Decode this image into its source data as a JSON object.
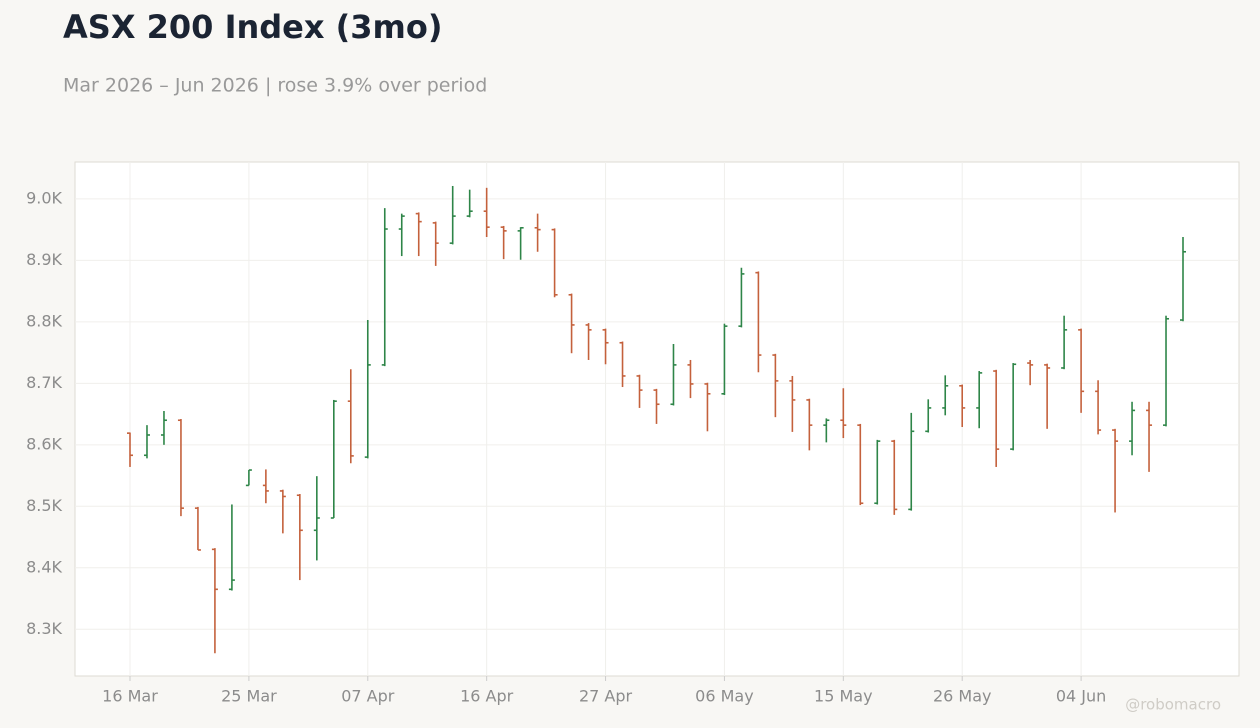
{
  "chart_data": {
    "type": "ohlc",
    "title": "ASX 200 Index (3mo)",
    "subtitle": "Mar 2026 – Jun 2026 | rose 3.9% over period",
    "watermark": "@robomacro",
    "categories": [
      "16 Mar",
      null,
      null,
      null,
      null,
      null,
      null,
      "25 Mar",
      null,
      null,
      null,
      null,
      null,
      null,
      "07 Apr",
      null,
      null,
      null,
      null,
      null,
      null,
      "16 Apr",
      null,
      null,
      null,
      null,
      null,
      null,
      "27 Apr",
      null,
      null,
      null,
      null,
      null,
      null,
      "06 May",
      null,
      null,
      null,
      null,
      null,
      null,
      "15 May",
      null,
      null,
      null,
      null,
      null,
      null,
      "26 May",
      null,
      null,
      null,
      null,
      null,
      null,
      "04 Jun",
      null,
      null,
      null,
      null,
      null,
      null
    ],
    "open": [
      8619,
      8583,
      8616,
      8640,
      8497,
      8430,
      8365,
      8534,
      8534,
      8525,
      8518,
      8461,
      8481,
      8671,
      8580,
      8730,
      8951,
      8976,
      8961,
      8928,
      8972,
      8980,
      8954,
      8948,
      8953,
      8950,
      8844,
      8795,
      8787,
      8766,
      8712,
      8689,
      8666,
      8730,
      8699,
      8683,
      8793,
      8880,
      8746,
      8704,
      8673,
      8632,
      8640,
      8632,
      8505,
      8606,
      8495,
      8622,
      8660,
      8696,
      8660,
      8720,
      8593,
      8733,
      8730,
      8725,
      8787,
      8687,
      8624,
      8606,
      8656,
      8632,
      8803
    ],
    "high": [
      8620,
      8632,
      8655,
      8642,
      8499,
      8432,
      8503,
      8559,
      8560,
      8527,
      8520,
      8549,
      8673,
      8723,
      8803,
      8985,
      8976,
      8978,
      8963,
      9021,
      9015,
      9018,
      8956,
      8954,
      8976,
      8952,
      8846,
      8798,
      8789,
      8768,
      8714,
      8691,
      8764,
      8738,
      8701,
      8797,
      8888,
      8882,
      8748,
      8712,
      8675,
      8643,
      8692,
      8634,
      8608,
      8608,
      8652,
      8674,
      8713,
      8698,
      8720,
      8722,
      8733,
      8738,
      8732,
      8810,
      8789,
      8705,
      8626,
      8670,
      8670,
      8810,
      8938
    ],
    "low": [
      8564,
      8578,
      8600,
      8484,
      8429,
      8261,
      8363,
      8534,
      8505,
      8456,
      8380,
      8412,
      8481,
      8570,
      8578,
      8728,
      8907,
      8907,
      8891,
      8926,
      8970,
      8938,
      8902,
      8901,
      8914,
      8840,
      8749,
      8738,
      8731,
      8694,
      8660,
      8634,
      8664,
      8676,
      8622,
      8681,
      8791,
      8718,
      8645,
      8621,
      8591,
      8604,
      8611,
      8502,
      8503,
      8486,
      8493,
      8620,
      8648,
      8629,
      8627,
      8564,
      8591,
      8697,
      8626,
      8723,
      8652,
      8617,
      8490,
      8583,
      8556,
      8630,
      8801
    ],
    "close": [
      8583,
      8616,
      8640,
      8497,
      8429,
      8365,
      8380,
      8559,
      8525,
      8516,
      8461,
      8481,
      8671,
      8582,
      8730,
      8951,
      8972,
      8963,
      8928,
      8972,
      8980,
      8954,
      8948,
      8953,
      8950,
      8844,
      8795,
      8787,
      8766,
      8712,
      8689,
      8666,
      8730,
      8699,
      8683,
      8793,
      8878,
      8746,
      8704,
      8673,
      8632,
      8640,
      8632,
      8505,
      8606,
      8495,
      8622,
      8660,
      8696,
      8660,
      8717,
      8593,
      8731,
      8730,
      8725,
      8787,
      8687,
      8624,
      8606,
      8656,
      8632,
      8805,
      8914
    ],
    "up_color": "#2e8548",
    "down_color": "#c4613c",
    "ylim": [
      8224,
      9060
    ],
    "yticks": [
      {
        "value": 8300,
        "label": "8.3K"
      },
      {
        "value": 8400,
        "label": "8.4K"
      },
      {
        "value": 8500,
        "label": "8.5K"
      },
      {
        "value": 8600,
        "label": "8.6K"
      },
      {
        "value": 8700,
        "label": "8.7K"
      },
      {
        "value": 8800,
        "label": "8.8K"
      },
      {
        "value": 8900,
        "label": "8.9K"
      },
      {
        "value": 9000,
        "label": "9.0K"
      }
    ],
    "grid": true
  }
}
